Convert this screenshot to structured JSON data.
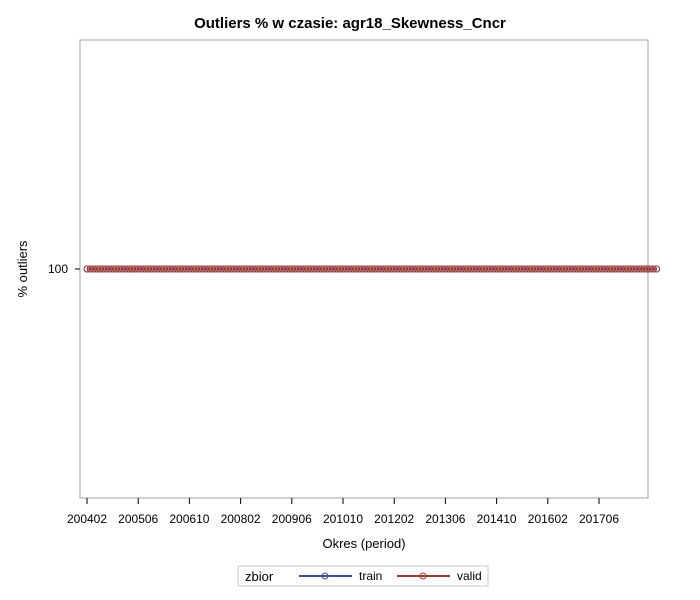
{
  "chart_data": {
    "type": "line",
    "title": "Outliers % w czasie: agr18_Skewness_Cncr",
    "xlabel": "Okres (period)",
    "ylabel": "% outliers",
    "x_tick_labels": [
      "200402",
      "200506",
      "200610",
      "200802",
      "200906",
      "201010",
      "201202",
      "201306",
      "201410",
      "201602",
      "201706"
    ],
    "period_start": "200402",
    "period_end": "201812",
    "yticks": [
      100
    ],
    "ylim": [
      99,
      101
    ],
    "legend_title": "zbior",
    "legend_position": "bottom",
    "series": [
      {
        "name": "train",
        "color": "#3f4d96",
        "value": 100
      },
      {
        "name": "valid",
        "color": "#a23b36",
        "value": 100
      }
    ]
  }
}
